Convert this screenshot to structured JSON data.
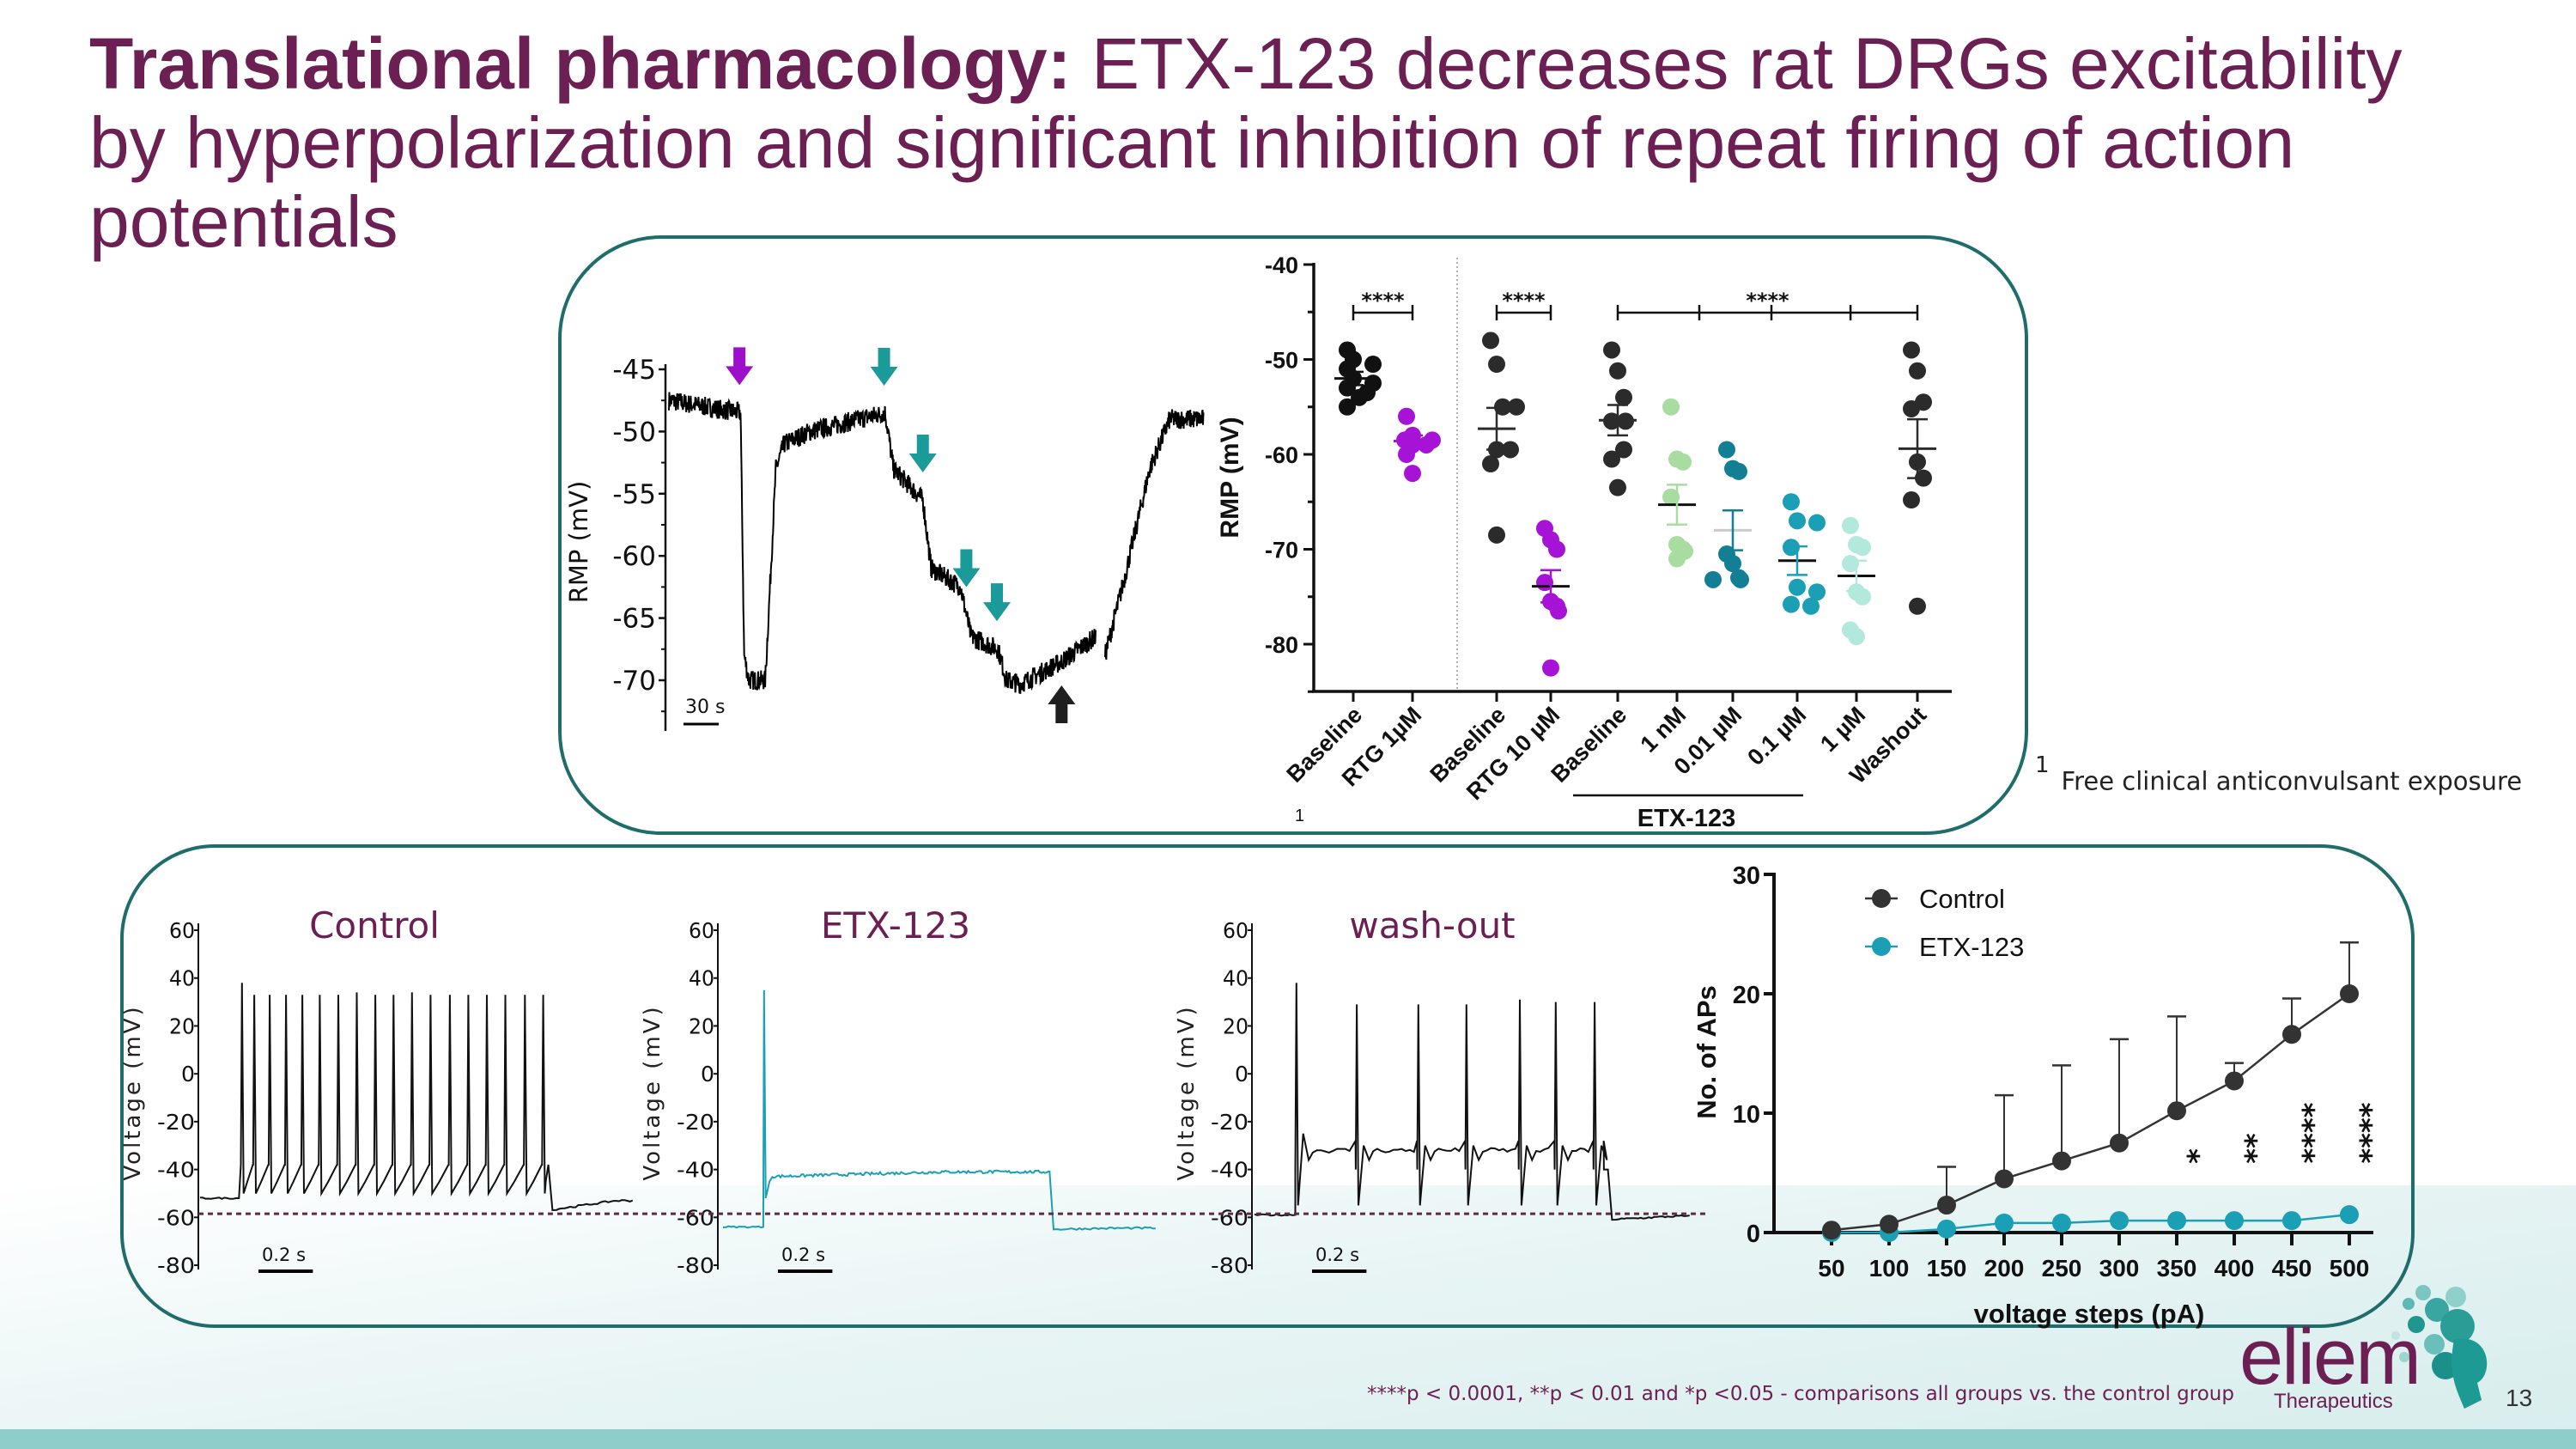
{
  "title": {
    "line1_bold": "Translational pharmacology:",
    "line1_rest": " ETX-123 decreases rat DRGs excitability",
    "line2": "by hyperpolarization and significant inhibition of repeat firing of action",
    "line3": "potentials"
  },
  "footnote_ref": {
    "marker": "1",
    "text": "Free clinical anticonvulsant exposure"
  },
  "footer": {
    "significance": "****p < 0.0001, **p < 0.01 and *p <0.05 - comparisons all groups vs. the control group",
    "page_number": "13"
  },
  "logo": {
    "name": "eliem",
    "sub": "Therapeutics"
  },
  "colors": {
    "title": "#6b1f52",
    "box_border": "#1e6d6b",
    "band": "#8ecdc9",
    "black": "#2b2b2b",
    "purple": "#a010d0",
    "teal": "#1a9fb5",
    "light_green": "#a8dca0",
    "dark_teal": "#137f95",
    "mint": "#b3e9dc",
    "arrow_teal": "#1a9a98",
    "reference_line": "#5e2a45"
  },
  "chart_data": [
    {
      "type": "line",
      "ylabel": "RMP (mV)",
      "ylim": [
        -74,
        -45
      ],
      "yticks": [
        "-45",
        "-50",
        "-55",
        "-60",
        "-65",
        "-70"
      ],
      "ytick_values": [
        -45,
        -50,
        -55,
        -60,
        -65,
        -70
      ],
      "xlim": [
        0,
        455
      ],
      "scale_bar": {
        "value": 30,
        "label": "30 s"
      },
      "segments": [
        {
          "t": [
            0,
            61,
            64,
            68,
            82,
            91,
            98,
            120,
            184,
            191,
            216,
            223,
            248,
            257,
            280,
            287,
            299,
            334,
            363
          ],
          "v": [
            -47.5,
            -48.5,
            -68,
            -70,
            -70,
            -53,
            -51,
            -50,
            -48.5,
            -53,
            -55.5,
            -61,
            -62.5,
            -66.5,
            -67.5,
            -70,
            -70.3,
            -68.5,
            -66.5
          ]
        },
        {
          "t": [
            371,
            387,
            409,
            426,
            455
          ],
          "v": [
            -68,
            -62,
            -53,
            -49,
            -49
          ]
        }
      ],
      "arrows": [
        {
          "t": 60,
          "direction": "down",
          "color": "#9b10c8"
        },
        {
          "t": 183,
          "direction": "down",
          "color": "#1a9a98"
        },
        {
          "t": 216,
          "direction": "down",
          "color": "#1a9a98"
        },
        {
          "t": 253,
          "direction": "down",
          "color": "#1a9a98"
        },
        {
          "t": 279,
          "direction": "down",
          "color": "#1a9a98"
        },
        {
          "t": 334,
          "direction": "up",
          "color": "#1f1f1f"
        }
      ]
    },
    {
      "type": "scatter",
      "ylabel": "RMP (mV)",
      "ylim": [
        -85,
        -40
      ],
      "yticks": [
        "-40",
        "-50",
        "-60",
        "-70",
        "-80"
      ],
      "ytick_values": [
        -40,
        -50,
        -60,
        -70,
        -80
      ],
      "categories": [
        "Baseline",
        "RTG 1µM",
        "Baseline",
        "RTG 10 µM",
        "Baseline",
        "1 nM",
        "0.01 µM",
        "0.1 µM",
        "1 µM",
        "Washout"
      ],
      "category_superscript": "1",
      "group_label": "ETX-123",
      "series": [
        {
          "values": [
            -49,
            -50,
            -50.5,
            -51,
            -52,
            -52.5,
            -53,
            -53.5,
            -54,
            -55
          ],
          "mean": -52.0,
          "sem": 0.7,
          "color": "#111111",
          "mean_color": "#111111"
        },
        {
          "values": [
            -56,
            -58,
            -58.5,
            -58.5,
            -59,
            -59,
            -60,
            -62
          ],
          "mean": -58.6,
          "sem": 0.6,
          "color": "#a612d6",
          "mean_color": "#a612d6"
        },
        {
          "values": [
            -48,
            -50.5,
            -55,
            -55,
            -59.5,
            -59.5,
            -61,
            -68.5
          ],
          "mean": -57.3,
          "sem": 2.2,
          "color": "#2b2b2b",
          "mean_color": "#2b2b2b"
        },
        {
          "values": [
            -67.8,
            -69,
            -70,
            -73.5,
            -75.5,
            -76,
            -76.5,
            -82.5
          ],
          "mean": -73.9,
          "sem": 1.7,
          "color": "#a612d6",
          "mean_color": "#111111"
        },
        {
          "values": [
            -49,
            -51.2,
            -54,
            -56.5,
            -56.5,
            -59.5,
            -60.5,
            -63.5
          ],
          "mean": -56.4,
          "sem": 1.6,
          "color": "#2b2b2b",
          "mean_color": "#2b2b2b"
        },
        {
          "values": [
            -55,
            -60.5,
            -60.8,
            -64.5,
            -69.5,
            -70,
            -70.2,
            -71
          ],
          "mean": -65.3,
          "sem": 2.1,
          "color": "#a8dca0",
          "mean_color": "#111111"
        },
        {
          "values": [
            -59.5,
            -61.5,
            -61.8,
            -70.5,
            -71.5,
            -73,
            -73.2,
            -73.2
          ],
          "mean": -68.0,
          "sem": 2.1,
          "color": "#137f95",
          "mean_color": "#cccccc"
        },
        {
          "values": [
            -65,
            -67,
            -67.2,
            -69.8,
            -74,
            -74.5,
            -75.8,
            -76
          ],
          "mean": -71.2,
          "sem": 1.5,
          "color": "#1a9fb5",
          "mean_color": "#111111"
        },
        {
          "values": [
            -67.5,
            -69.5,
            -69.8,
            -71.5,
            -74.5,
            -75,
            -78.5,
            -79.2
          ],
          "mean": -72.8,
          "sem": 1.6,
          "color": "#b3e9dc",
          "mean_color": "#111111"
        },
        {
          "values": [
            -49,
            -51.2,
            -54.5,
            -55.2,
            -60.8,
            -62.5,
            -64.8,
            -76
          ],
          "mean": -59.4,
          "sem": 3.1,
          "color": "#2b2b2b",
          "mean_color": "#2b2b2b"
        }
      ],
      "significance": [
        {
          "from": 0,
          "to": 1,
          "label": "****",
          "ticks": [
            0,
            1
          ]
        },
        {
          "from": 2,
          "to": 3,
          "label": "****",
          "ticks": [
            2,
            3
          ]
        },
        {
          "from": 4,
          "to": 9,
          "label": "****",
          "ticks": [
            4,
            5.4,
            6.6,
            7.9,
            9
          ]
        }
      ]
    },
    {
      "type": "line",
      "title": "Control",
      "ylabel": "Voltage (mV)",
      "ylim": [
        -80,
        60
      ],
      "yticks": [
        "60",
        "40",
        "20",
        "0",
        "-20",
        "-40",
        "-60",
        "-80"
      ],
      "ytick_values": [
        60,
        40,
        20,
        0,
        -20,
        -40,
        -60,
        -80
      ],
      "xlim": [
        0,
        1.6
      ],
      "scale_bar": {
        "value": 0.2,
        "label": "0.2 s"
      },
      "reference_line": -58.5,
      "color": "#111111",
      "pre": -52,
      "step_on": 0.143,
      "step_off": 1.28,
      "post": [
        -57,
        -53
      ],
      "trough": -50,
      "threshold": -38,
      "spikes": [
        {
          "t": 0.154,
          "peak": 38
        },
        {
          "t": 0.199,
          "peak": 33
        },
        {
          "t": 0.256,
          "peak": 33
        },
        {
          "t": 0.316,
          "peak": 33
        },
        {
          "t": 0.376,
          "peak": 33
        },
        {
          "t": 0.44,
          "peak": 33
        },
        {
          "t": 0.508,
          "peak": 33
        },
        {
          "t": 0.576,
          "peak": 34
        },
        {
          "t": 0.644,
          "peak": 33
        },
        {
          "t": 0.711,
          "peak": 33
        },
        {
          "t": 0.779,
          "peak": 34
        },
        {
          "t": 0.847,
          "peak": 33
        },
        {
          "t": 0.918,
          "peak": 33
        },
        {
          "t": 0.986,
          "peak": 33
        },
        {
          "t": 1.054,
          "peak": 33
        },
        {
          "t": 1.122,
          "peak": 33
        },
        {
          "t": 1.194,
          "peak": 33
        },
        {
          "t": 1.261,
          "peak": 33
        }
      ]
    },
    {
      "type": "line",
      "title": "ETX-123",
      "ylabel": "Voltage (mV)",
      "ylim": [
        -80,
        60
      ],
      "yticks": [
        "60",
        "40",
        "20",
        "0",
        "-20",
        "-40",
        "-60",
        "-80"
      ],
      "ytick_values": [
        60,
        40,
        20,
        0,
        -20,
        -40,
        -60,
        -80
      ],
      "xlim": [
        0,
        1.6
      ],
      "scale_bar": {
        "value": 0.2,
        "label": "0.2 s"
      },
      "reference_line": -58.5,
      "color": "#1a9fb5",
      "pre": -64,
      "step_on": 0.148,
      "step_off": 1.2,
      "post": [
        -65,
        -64.5
      ],
      "plateau": [
        -43,
        -41
      ],
      "spikes": [
        {
          "t": 0.151,
          "peak": 35
        }
      ]
    },
    {
      "type": "line",
      "title": "wash-out",
      "ylabel": "Voltage (mV)",
      "ylim": [
        -80,
        60
      ],
      "yticks": [
        "60",
        "40",
        "20",
        "0",
        "-20",
        "-40",
        "-60",
        "-80"
      ],
      "ytick_values": [
        60,
        40,
        20,
        0,
        -20,
        -40,
        -60,
        -80
      ],
      "xlim": [
        0,
        1.6
      ],
      "scale_bar": {
        "value": 0.2,
        "label": "0.2 s"
      },
      "reference_line": -58.5,
      "color": "#111111",
      "pre": -59,
      "step_on": 0.15,
      "step_off": 1.299,
      "post": [
        -61,
        -59.5
      ],
      "trough": -55,
      "interspike": -32,
      "spikes": [
        {
          "t": 0.154,
          "peak": 38
        },
        {
          "t": 0.376,
          "peak": 29
        },
        {
          "t": 0.602,
          "peak": 29
        },
        {
          "t": 0.779,
          "peak": 29
        },
        {
          "t": 0.975,
          "peak": 31
        },
        {
          "t": 1.107,
          "peak": 30
        },
        {
          "t": 1.25,
          "peak": 30
        },
        {
          "t": 1.288,
          "peak": -40
        }
      ]
    },
    {
      "type": "line",
      "xlabel": "voltage steps (pA)",
      "ylabel": "No. of APs",
      "ylim": [
        0,
        30
      ],
      "yticks": [
        "0",
        "10",
        "20",
        "30"
      ],
      "ytick_values": [
        0,
        10,
        20,
        30
      ],
      "categories": [
        "50",
        "100",
        "150",
        "200",
        "250",
        "300",
        "350",
        "400",
        "450",
        "500"
      ],
      "x": [
        50,
        100,
        150,
        200,
        250,
        300,
        350,
        400,
        450,
        500
      ],
      "legend": "top-left",
      "series": [
        {
          "name": "Control",
          "color": "#333333",
          "values": [
            0.2,
            0.7,
            2.3,
            4.5,
            6.0,
            7.5,
            10.2,
            12.7,
            16.6,
            20.0
          ],
          "error_upper": [
            0.2,
            0.7,
            5.5,
            11.5,
            14.0,
            16.2,
            18.1,
            14.2,
            19.6,
            24.3
          ]
        },
        {
          "name": "ETX-123",
          "color": "#1a9fb5",
          "values": [
            0,
            0,
            0.3,
            0.8,
            0.8,
            1.0,
            1.0,
            1.0,
            1.0,
            1.5
          ]
        }
      ],
      "annotations": [
        {
          "x": 350,
          "label": "*"
        },
        {
          "x": 400,
          "label": "**"
        },
        {
          "x": 450,
          "label": "****"
        },
        {
          "x": 500,
          "label": "****"
        }
      ]
    }
  ]
}
